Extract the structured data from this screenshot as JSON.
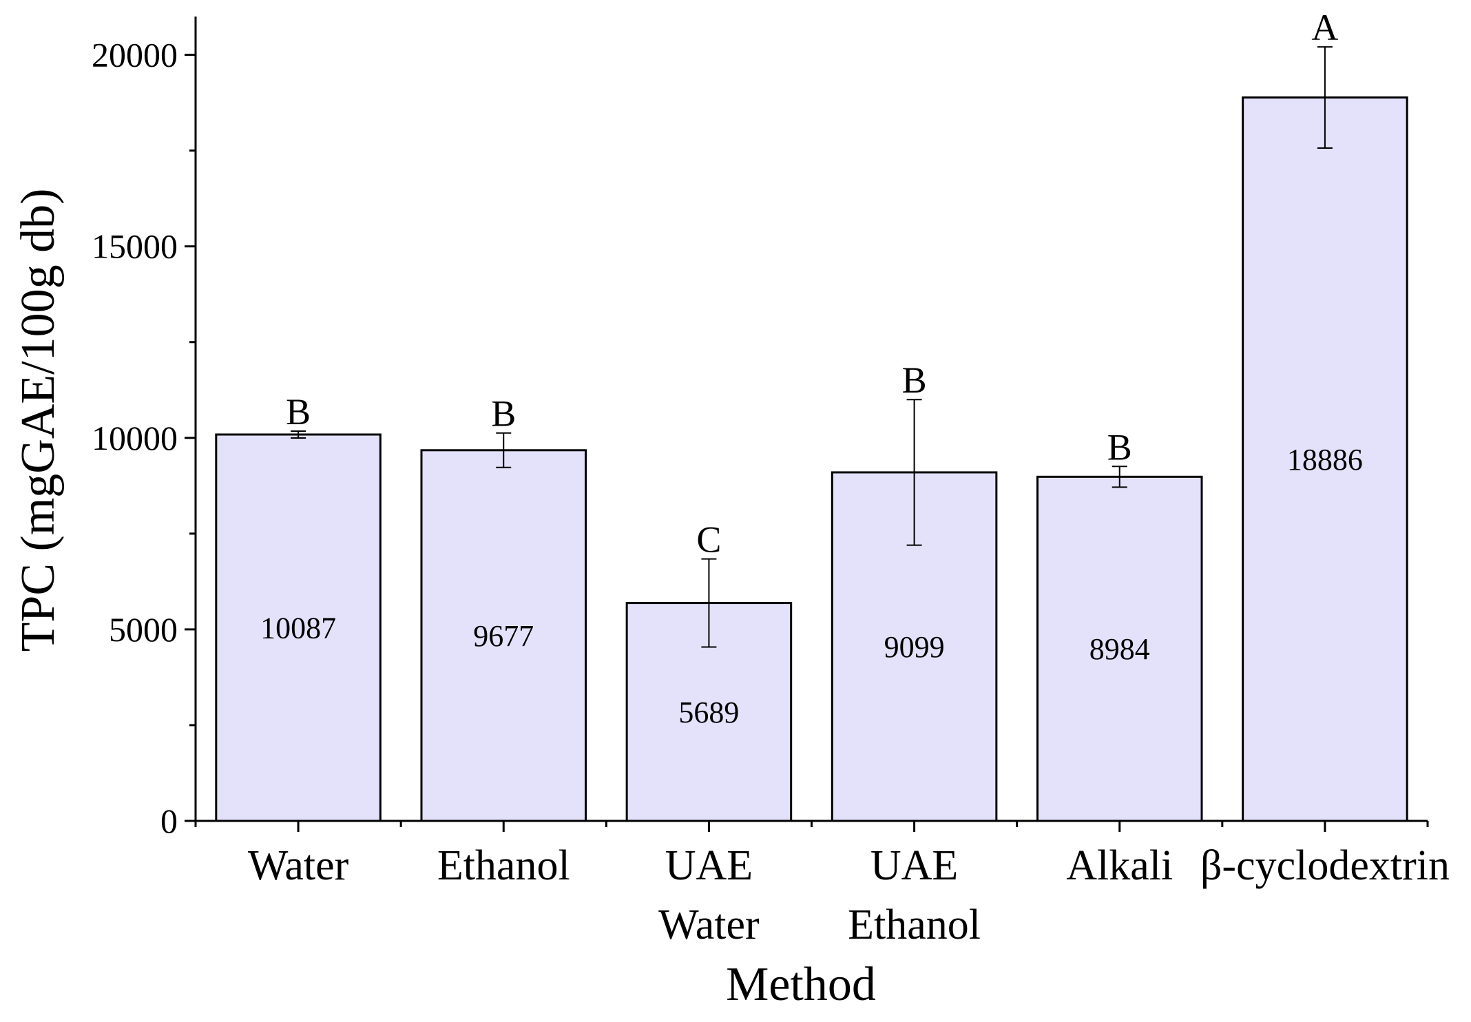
{
  "chart_data": {
    "type": "bar",
    "xlabel": "Method",
    "ylabel": "TPC (mgGAE/100g db)",
    "ylim": [
      0,
      21000
    ],
    "yticks": [
      0,
      5000,
      10000,
      15000,
      20000
    ],
    "grid": false,
    "categories": [
      [
        "Water"
      ],
      [
        "Ethanol"
      ],
      [
        "UAE",
        "Water"
      ],
      [
        "UAE",
        "Ethanol"
      ],
      [
        "Alkali"
      ],
      [
        "β-cyclodextrin"
      ]
    ],
    "values": [
      10087,
      9677,
      5689,
      9099,
      8984,
      18886
    ],
    "value_labels": [
      "10087",
      "9677",
      "5689",
      "9099",
      "8984",
      "18886"
    ],
    "errors": [
      90,
      450,
      1150,
      1900,
      270,
      1320
    ],
    "significance_letters": [
      "B",
      "B",
      "C",
      "B",
      "B",
      "A"
    ],
    "bar_color": "#e4e2fb",
    "bar_edge_color": "#000000"
  }
}
